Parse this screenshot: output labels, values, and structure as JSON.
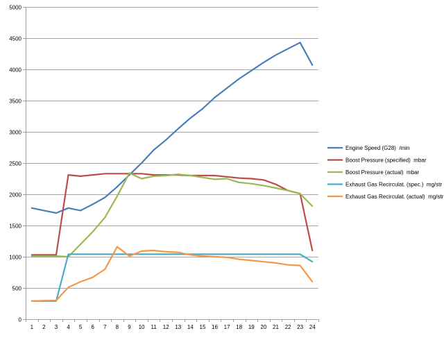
{
  "chart_data": {
    "type": "line",
    "title": "",
    "xlabel": "",
    "ylabel": "",
    "x": [
      1,
      2,
      3,
      4,
      5,
      6,
      7,
      8,
      9,
      10,
      11,
      12,
      13,
      14,
      15,
      16,
      17,
      18,
      19,
      20,
      21,
      22,
      23,
      24
    ],
    "ylim": [
      0,
      5000
    ],
    "yticks": [
      0,
      500,
      1000,
      1500,
      2000,
      2500,
      3000,
      3500,
      4000,
      4500,
      5000
    ],
    "grid": "horizontal",
    "legend_position": "right",
    "series": [
      {
        "name": "Engine Speed (G28)  /min",
        "color": "#4a7ebb",
        "values": [
          1780,
          1740,
          1700,
          1780,
          1740,
          1840,
          1950,
          2120,
          2310,
          2500,
          2710,
          2870,
          3050,
          3220,
          3370,
          3550,
          3700,
          3850,
          3980,
          4110,
          4230,
          4330,
          4430,
          4070
        ]
      },
      {
        "name": "Boost Pressure (specified)  mbar",
        "color": "#be4b48",
        "values": [
          1030,
          1030,
          1030,
          2310,
          2290,
          2310,
          2330,
          2330,
          2330,
          2330,
          2310,
          2310,
          2310,
          2300,
          2300,
          2300,
          2280,
          2260,
          2250,
          2230,
          2160,
          2060,
          2010,
          1100
        ]
      },
      {
        "name": "Boost Pressure (actual)  mbar",
        "color": "#98b954",
        "values": [
          1010,
          1010,
          1010,
          1000,
          1200,
          1400,
          1630,
          1970,
          2340,
          2250,
          2290,
          2300,
          2320,
          2300,
          2270,
          2240,
          2250,
          2190,
          2170,
          2140,
          2100,
          2060,
          2010,
          1810
        ]
      },
      {
        "name": "Exhaust Gas Recirculat. (spec.)  mg/str",
        "color": "#4bacc6",
        "values": [
          290,
          290,
          290,
          1040,
          1040,
          1040,
          1040,
          1040,
          1040,
          1040,
          1040,
          1040,
          1040,
          1040,
          1040,
          1040,
          1040,
          1040,
          1040,
          1040,
          1040,
          1040,
          1040,
          920
        ]
      },
      {
        "name": "Exhaust Gas Recirculat. (actual)  mg/str",
        "color": "#f79646",
        "values": [
          290,
          295,
          300,
          510,
          600,
          670,
          800,
          1160,
          1010,
          1090,
          1100,
          1080,
          1070,
          1030,
          1010,
          1000,
          990,
          960,
          940,
          920,
          900,
          870,
          860,
          600
        ]
      }
    ]
  }
}
